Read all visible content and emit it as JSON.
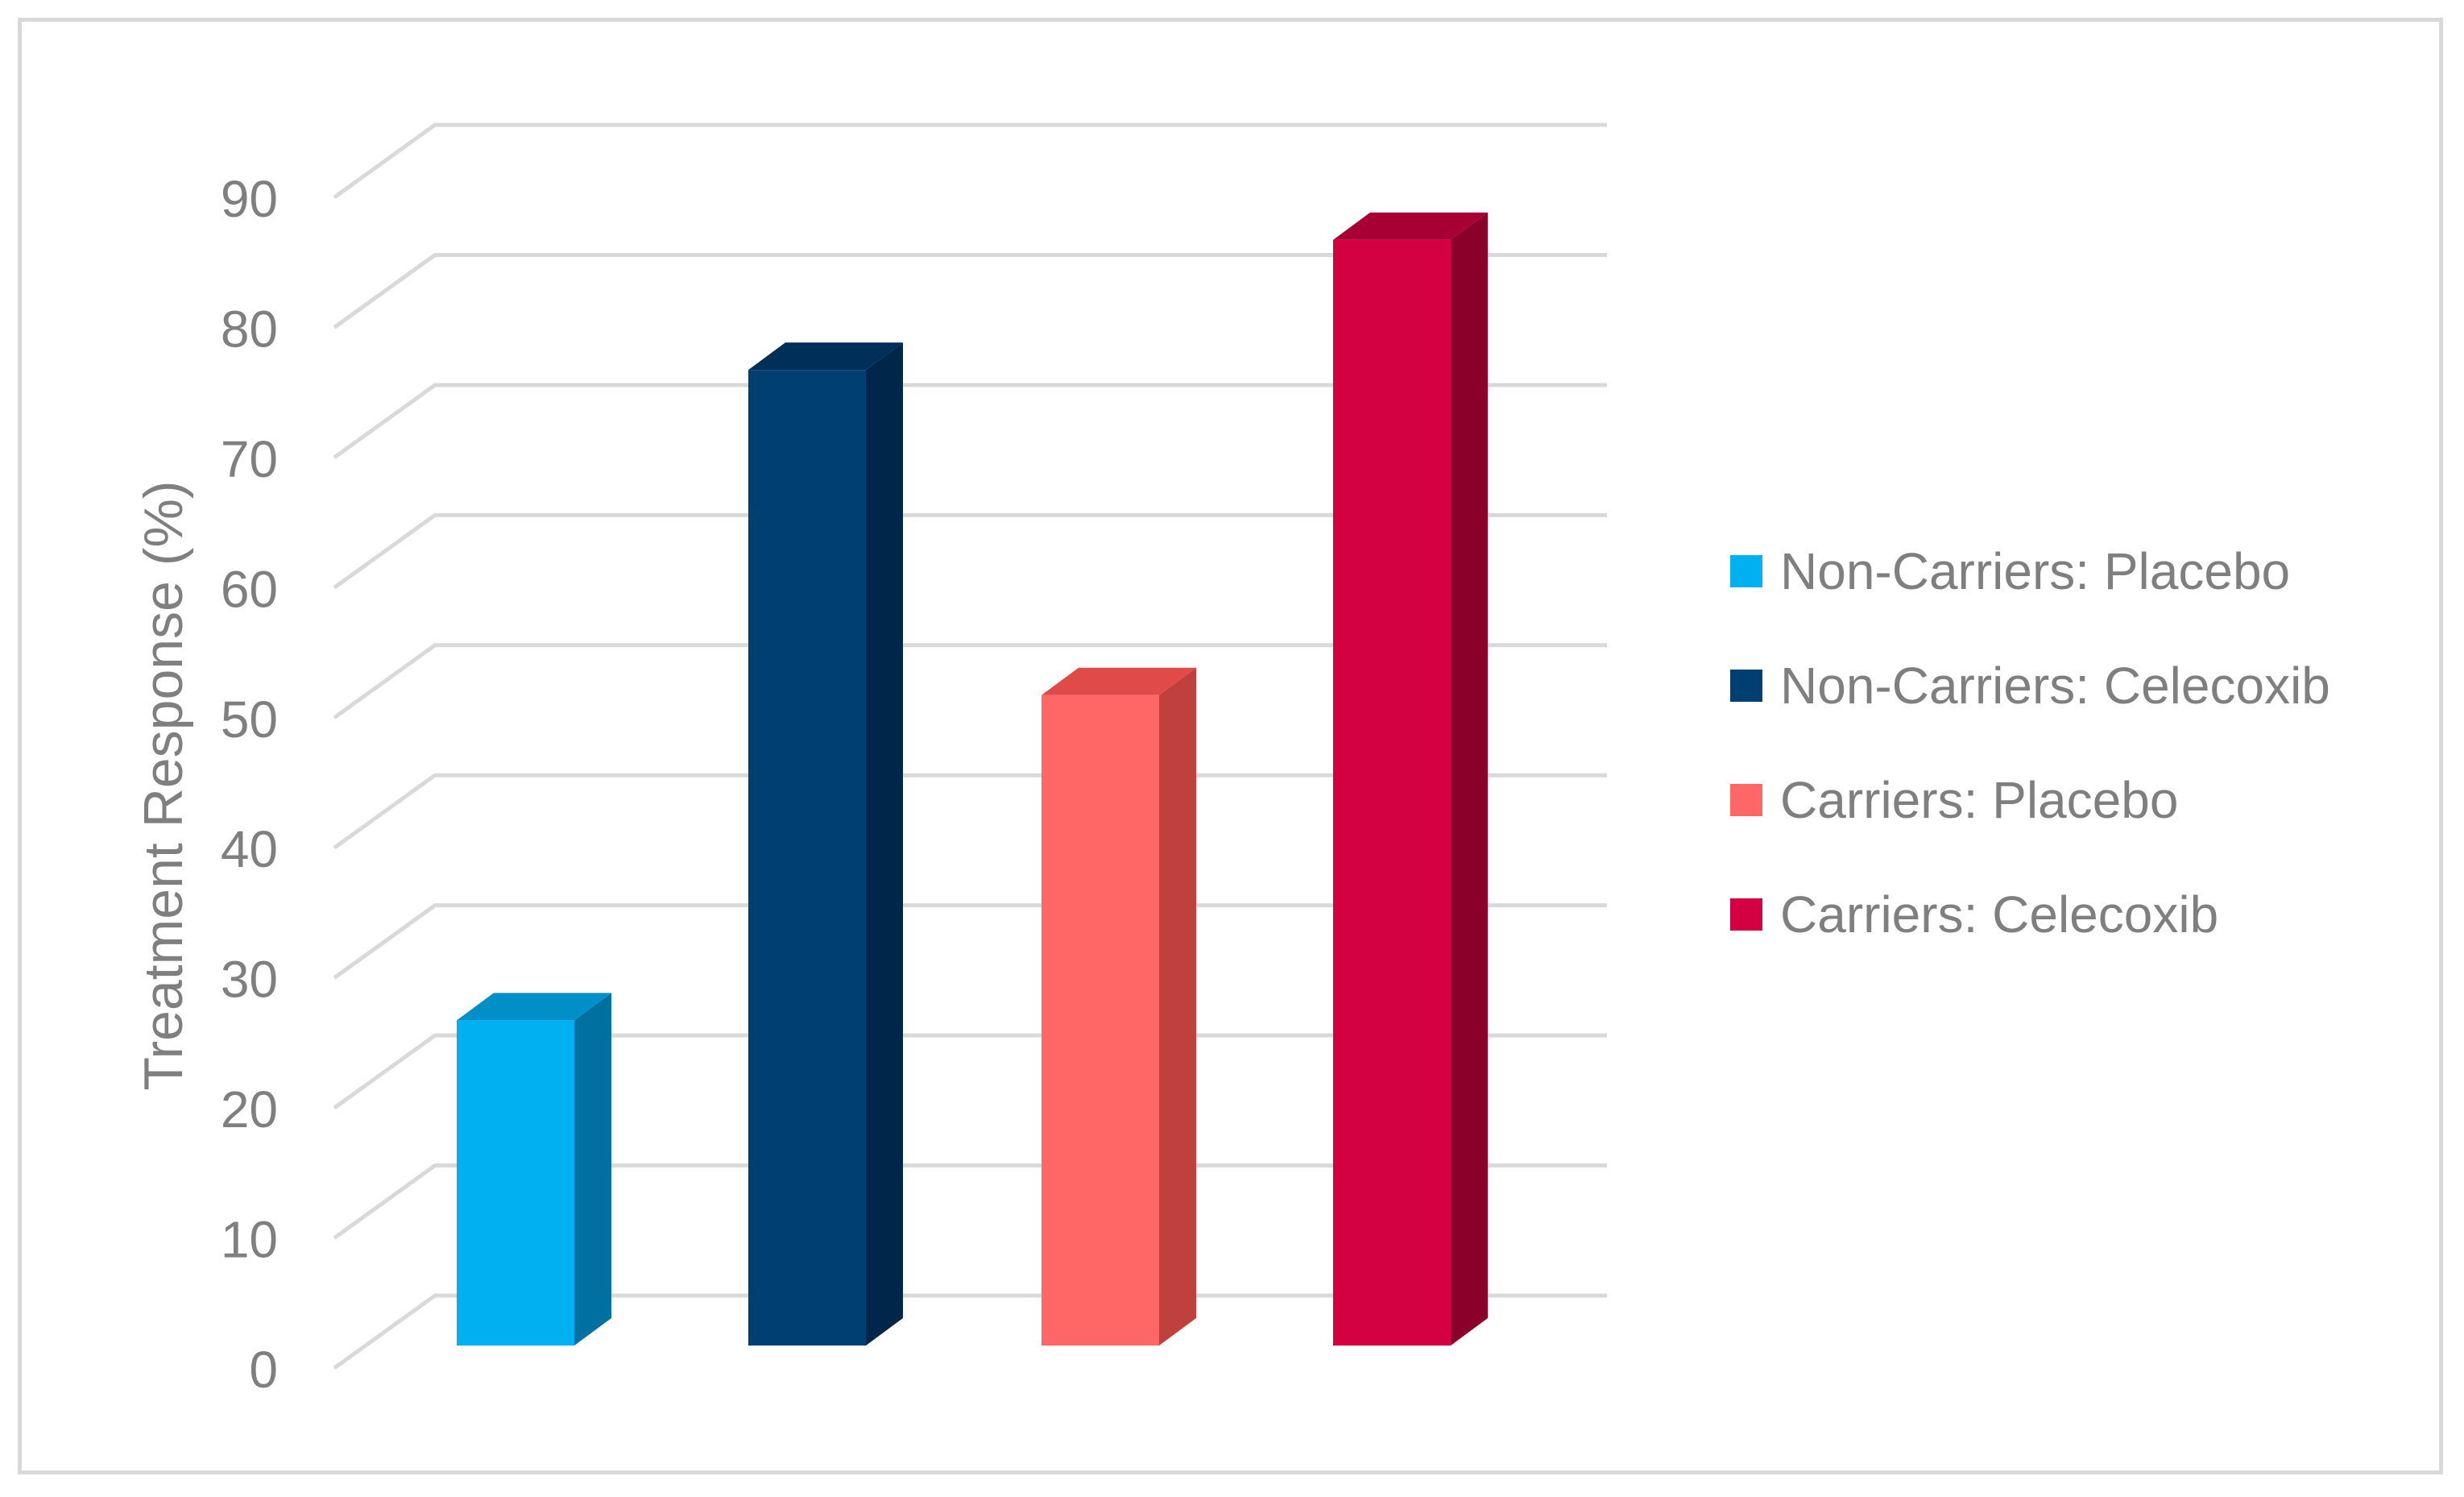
{
  "chart_data": {
    "type": "bar",
    "style": "3d-column",
    "ylabel": "Treatment Response (%)",
    "ylim": [
      0,
      90
    ],
    "yticks": [
      0,
      10,
      20,
      30,
      40,
      50,
      60,
      70,
      80,
      90
    ],
    "grid": true,
    "legend_position": "right",
    "series": [
      {
        "name": "Non-Carriers: Placebo",
        "value": 25,
        "color": "#00b0f0",
        "side_color": "#0070a0",
        "top_color": "#0090c8"
      },
      {
        "name": "Non-Carriers: Celecoxib",
        "value": 75,
        "color": "#003f72",
        "side_color": "#00264a",
        "top_color": "#002f5a"
      },
      {
        "name": "Carriers: Placebo",
        "value": 50,
        "color": "#ff6666",
        "side_color": "#c0403e",
        "top_color": "#e04a48"
      },
      {
        "name": "Carriers: Celecoxib",
        "value": 85,
        "color": "#d30042",
        "side_color": "#8a002a",
        "top_color": "#a80034"
      }
    ]
  }
}
